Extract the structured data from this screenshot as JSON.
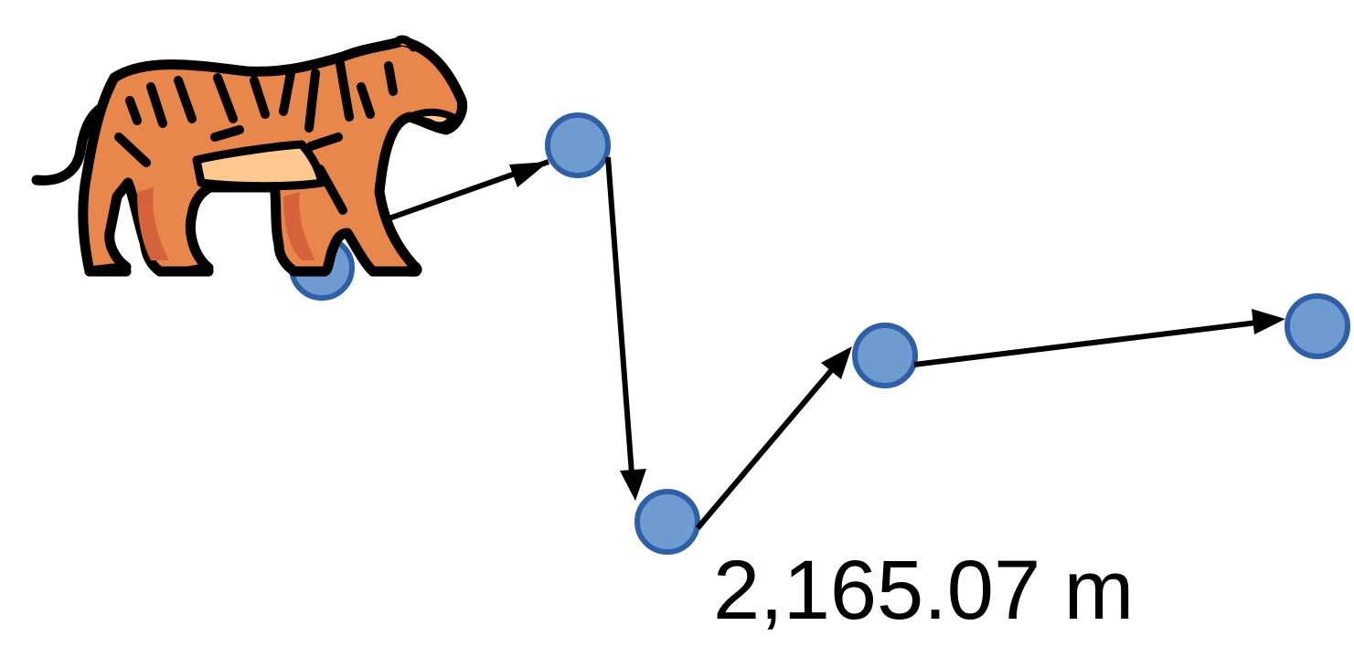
{
  "distance_label": "2,165.07 m",
  "colors": {
    "node_fill": "#6E9CD0",
    "node_stroke": "#2F5FA6",
    "arrow": "#000000",
    "tiger_orange": "#E8874B",
    "tiger_dark_orange": "#D5623A",
    "tiger_belly": "#FFC98F",
    "tiger_outline": "#000000"
  },
  "icon": "tiger-icon"
}
